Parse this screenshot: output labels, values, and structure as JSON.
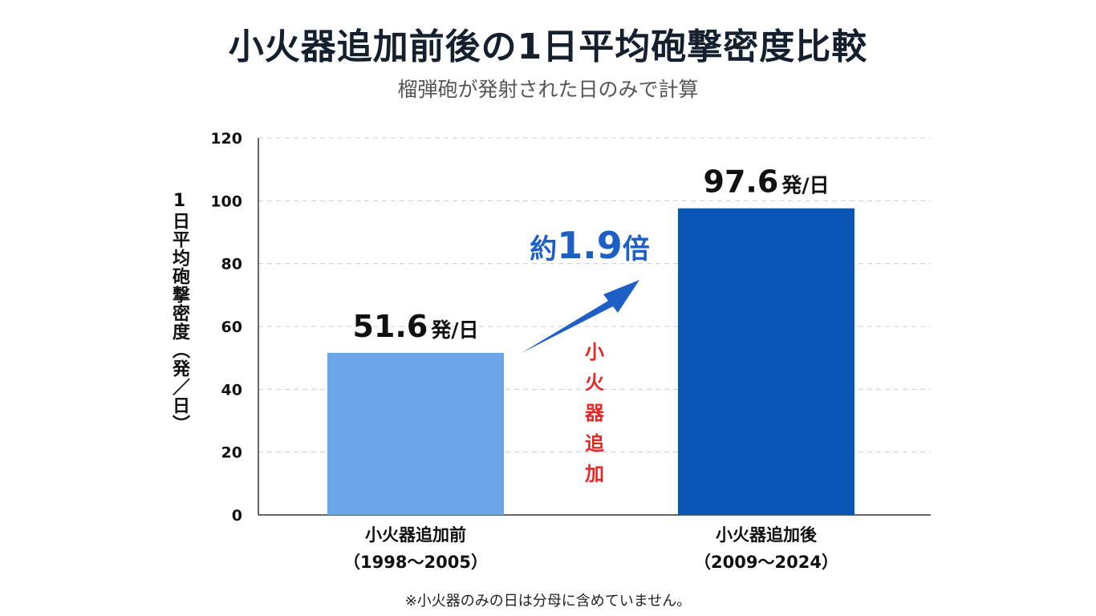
{
  "title": "小火器追加前後の1日平均砲撃密度比較",
  "subtitle": "榴弾砲が発射された日のみで計算",
  "footnote": "※小火器のみの日は分母に含めていません。",
  "colors": {
    "bar_before": "#6aa6e6",
    "bar_after": "#0a56b4",
    "arrow": "#1d5fc4",
    "annotation": "#e82727",
    "grid": "#cccccc"
  },
  "ratio_label": {
    "prefix": "約",
    "number": "1.9",
    "suffix": "倍"
  },
  "annotation_text": "小火器追加",
  "chart_data": {
    "type": "bar",
    "title": "小火器追加前後の1日平均砲撃密度比較",
    "subtitle": "榴弾砲が発射された日のみで計算",
    "ylabel": "1日平均砲撃密度（発／日）",
    "ylim": [
      0,
      120
    ],
    "yticks": [
      0,
      20,
      40,
      60,
      80,
      100,
      120
    ],
    "grid": true,
    "categories": [
      {
        "line1": "小火器追加前",
        "line2": "（1998〜2005）"
      },
      {
        "line1": "小火器追加後",
        "line2": "（2009〜2024）"
      }
    ],
    "values": [
      51.6,
      97.6
    ],
    "value_labels": [
      "51.6",
      "97.6"
    ],
    "value_unit": "発/日"
  }
}
